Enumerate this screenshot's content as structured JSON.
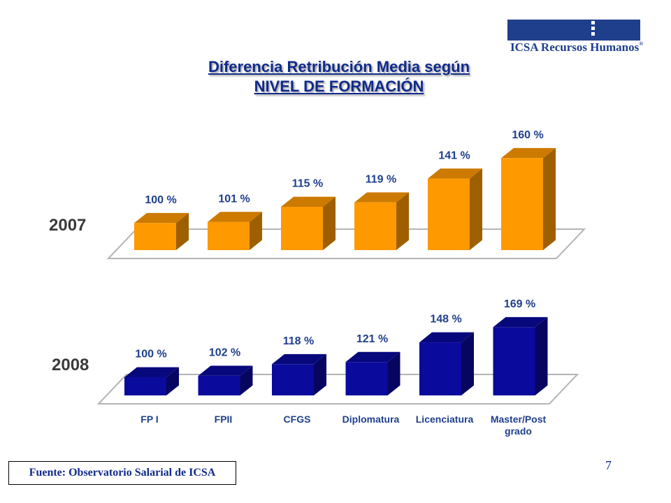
{
  "logo": {
    "text": "ICSA Recursos Humanos",
    "mark": "®"
  },
  "title": {
    "line1": "Diferencia Retribución Media según",
    "line2": "NIVEL DE FORMACIÓN"
  },
  "chart_data": {
    "type": "bar",
    "style": "3d",
    "categories": [
      "FP I",
      "FPII",
      "CFGS",
      "Diplomatura",
      "Licenciatura",
      "Master/Post grado"
    ],
    "category_label_lines": [
      [
        "FP I"
      ],
      [
        "FPII"
      ],
      [
        "CFGS"
      ],
      [
        "Diplomatura"
      ],
      [
        "Licenciatura"
      ],
      [
        "Master/Post",
        "grado"
      ]
    ],
    "unit": "%",
    "series": [
      {
        "name": "2007",
        "values": [
          100,
          101,
          115,
          119,
          141,
          160
        ],
        "labels": [
          "100 %",
          "101 %",
          "115 %",
          "119 %",
          "141 %",
          "160 %"
        ],
        "color": "#ff9900"
      },
      {
        "name": "2008",
        "values": [
          100,
          102,
          118,
          121,
          148,
          169
        ],
        "labels": [
          "100 %",
          "102 %",
          "118 %",
          "121 %",
          "148 %",
          "169 %"
        ],
        "color": "#0a0a9c"
      }
    ]
  },
  "source": "Fuente: Observatorio Salarial de ICSA",
  "page_number": "7"
}
